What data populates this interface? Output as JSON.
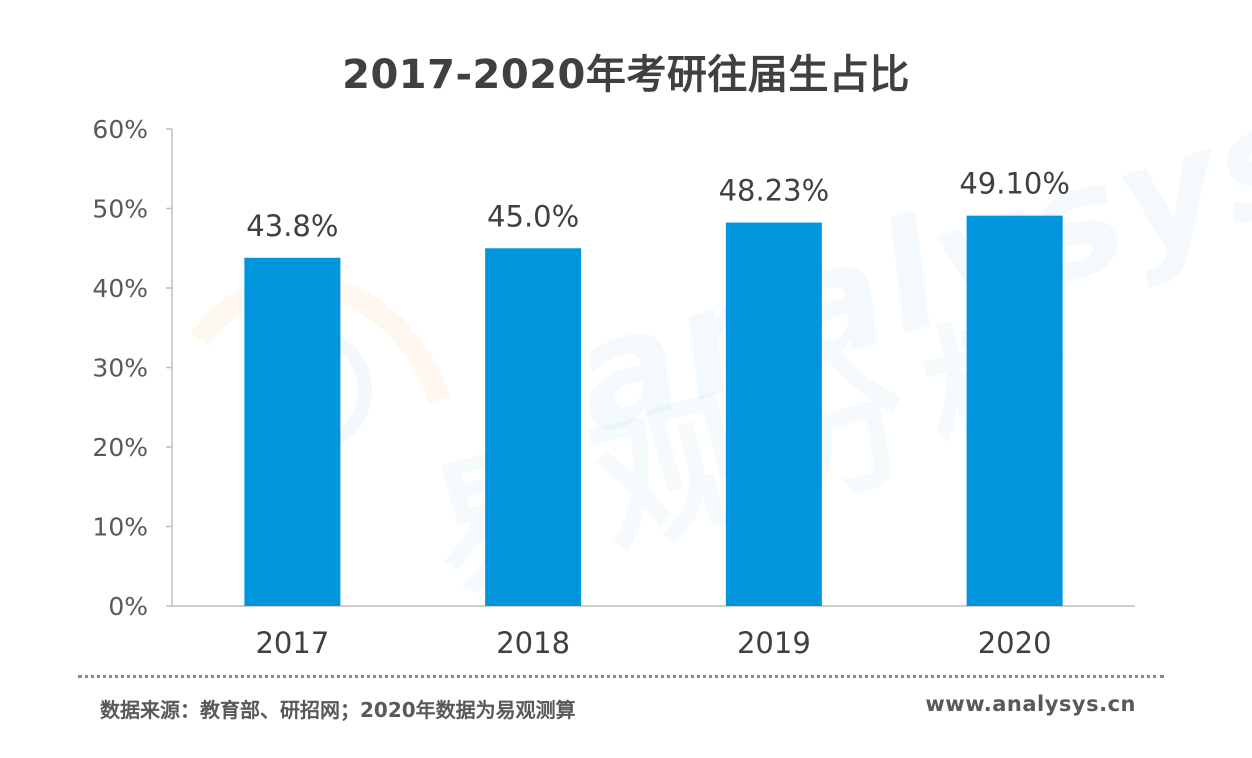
{
  "title": "2017-2020年考研往届生占比",
  "source": "数据来源：教育部、研招网；2020年数据为易观测算",
  "site": "www.analysys.cn",
  "watermark": {
    "latin": "analysys",
    "cjk": "易观分析"
  },
  "colors": {
    "bar": "#0095DD",
    "axis": "#BFBFBF",
    "text": "#404040",
    "tick_text": "#595959"
  },
  "chart_data": {
    "type": "bar",
    "title": "2017-2020年考研往届生占比",
    "categories": [
      "2017",
      "2018",
      "2019",
      "2020"
    ],
    "values": [
      43.8,
      45.0,
      48.23,
      49.1
    ],
    "data_labels": [
      "43.8%",
      "45.0%",
      "48.23%",
      "49.10%"
    ],
    "ylim": [
      0,
      60
    ],
    "yticks": [
      0,
      10,
      20,
      30,
      40,
      50,
      60
    ],
    "ytick_labels": [
      "0%",
      "10%",
      "20%",
      "30%",
      "40%",
      "50%",
      "60%"
    ],
    "xlabel": "",
    "ylabel": "",
    "grid": false,
    "legend": "none"
  }
}
